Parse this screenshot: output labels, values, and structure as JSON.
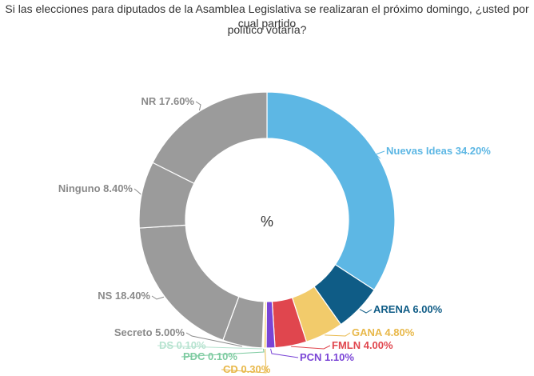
{
  "chart_data": {
    "type": "pie",
    "title_line1": "Si las elecciones para diputados de la Asamblea Legislativa se realizaran el próximo domingo, ¿usted por cual partido",
    "title_line2": "político votaría?",
    "center_label": "%",
    "slices": [
      {
        "name": "Nuevas Ideas",
        "value": 34.2,
        "label": "Nuevas Ideas 34.20%",
        "color": "#5DB7E4"
      },
      {
        "name": "ARENA",
        "value": 6.0,
        "label": "ARENA 6.00%",
        "color": "#0F5C86"
      },
      {
        "name": "GANA",
        "value": 4.8,
        "label": "GANA 4.80%",
        "color": "#F2CB6B"
      },
      {
        "name": "FMLN",
        "value": 4.0,
        "label": "FMLN 4.00%",
        "color": "#E0464E"
      },
      {
        "name": "PCN",
        "value": 1.1,
        "label": "PCN 1.10%",
        "color": "#7A45D6"
      },
      {
        "name": "CD",
        "value": 0.3,
        "label": "CD 0.30%",
        "color": "#F2CB6B"
      },
      {
        "name": "PDC",
        "value": 0.1,
        "label": "PDC 0.10%",
        "color": "#7ECBA1"
      },
      {
        "name": "DS",
        "value": 0.1,
        "label": "DS 0.10%",
        "color": "#B7E3D0"
      },
      {
        "name": "Secreto",
        "value": 5.0,
        "label": "Secreto 5.00%",
        "color": "#9B9B9B"
      },
      {
        "name": "NS",
        "value": 18.4,
        "label": "NS 18.40%",
        "color": "#9B9B9B"
      },
      {
        "name": "Ninguno",
        "value": 8.4,
        "label": "Ninguno 8.40%",
        "color": "#9B9B9B"
      },
      {
        "name": "NR",
        "value": 17.6,
        "label": "NR 17.60%",
        "color": "#9B9B9B"
      }
    ],
    "label_colors": {
      "Nuevas Ideas": "#5DB7E4",
      "ARENA": "#0F5C86",
      "GANA": "#E8B84A",
      "FMLN": "#E0464E",
      "PCN": "#7A45D6",
      "CD": "#E8B84A",
      "PDC": "#7ECBA1",
      "DS": "#B7E3D0",
      "Secreto": "#8A8A8A",
      "NS": "#8A8A8A",
      "Ninguno": "#8A8A8A",
      "NR": "#8A8A8A"
    }
  }
}
